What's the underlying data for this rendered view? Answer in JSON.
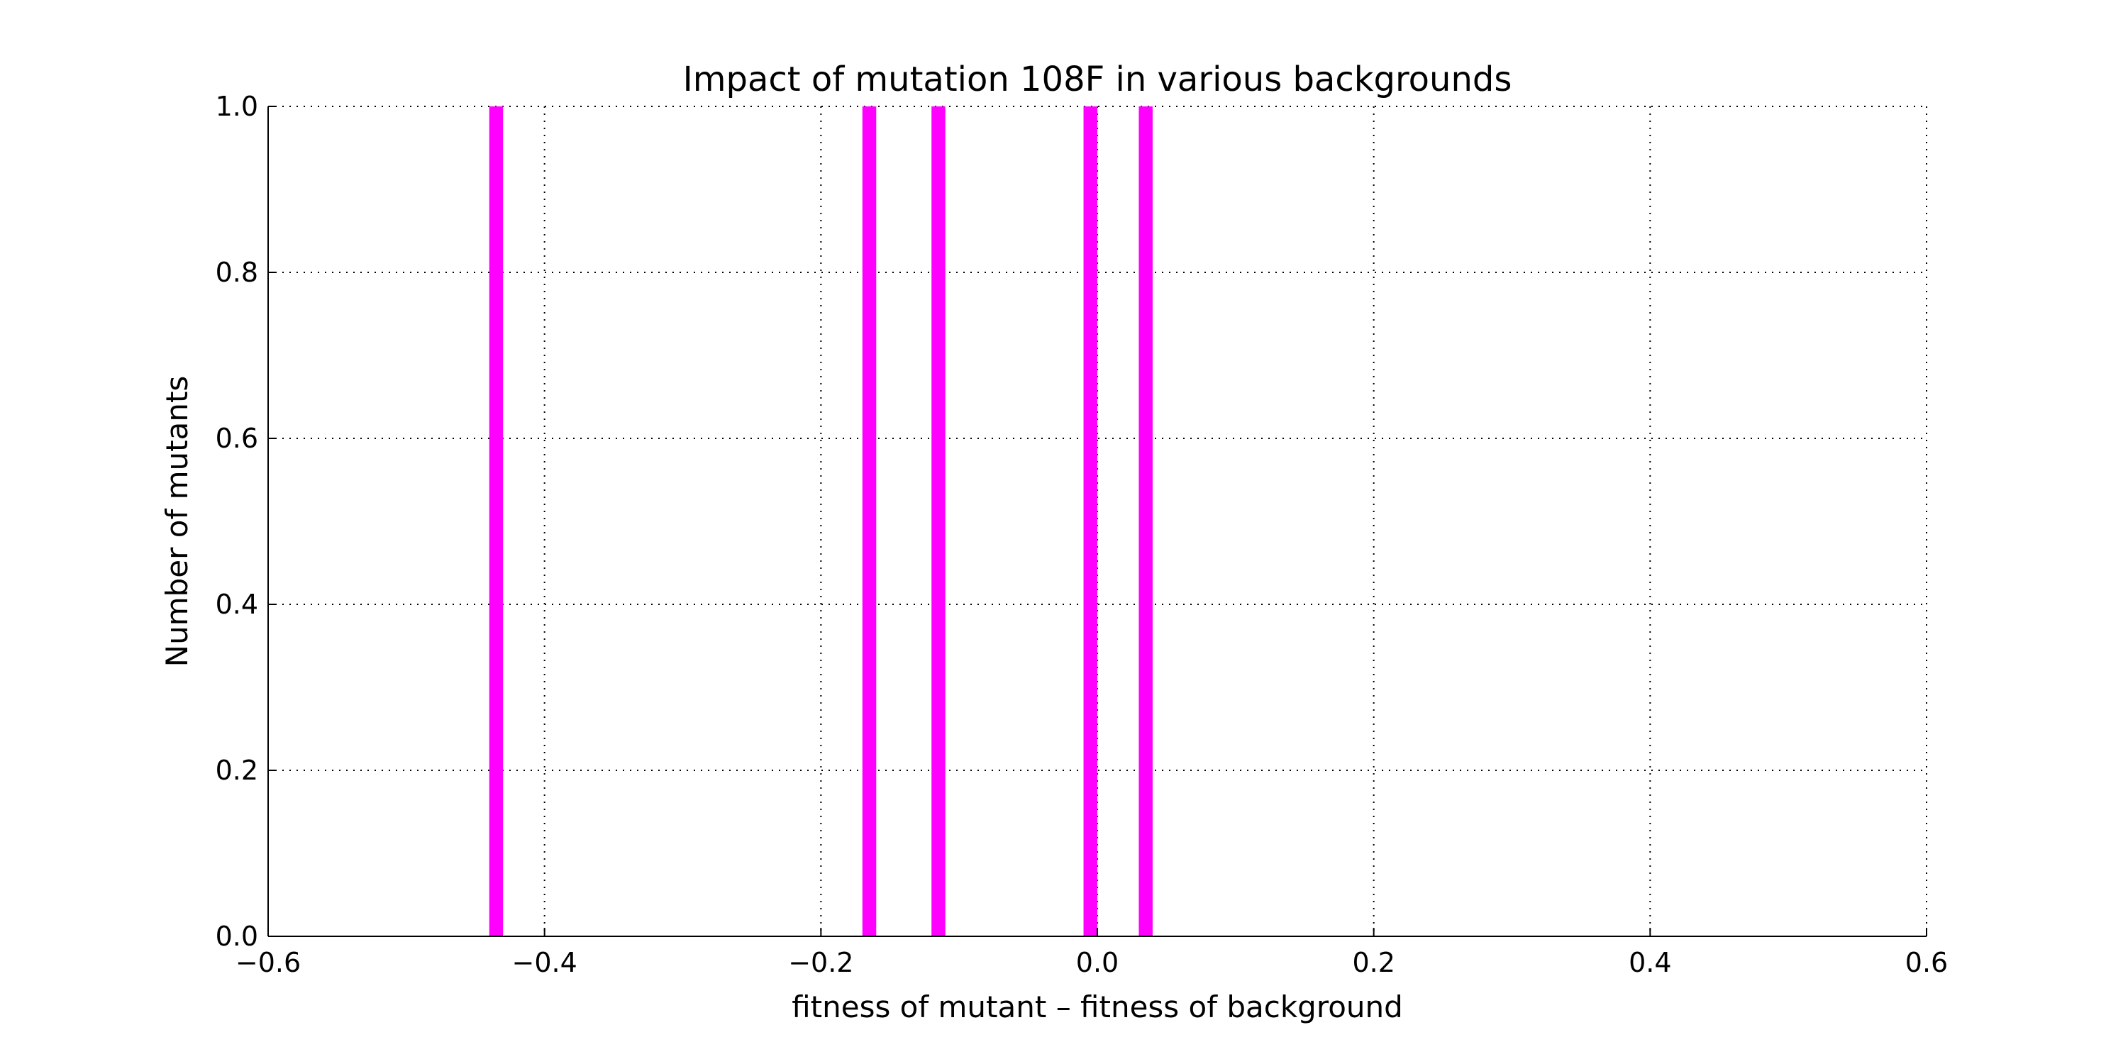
{
  "chart_data": {
    "type": "bar",
    "title": "Impact of mutation 108F in various backgrounds",
    "xlabel": "fitness of mutant  –  fitness of background",
    "ylabel": "Number of mutants",
    "xlim": [
      -0.6,
      0.6
    ],
    "ylim": [
      0.0,
      1.0
    ],
    "xticks": [
      -0.6,
      -0.4,
      -0.2,
      0.0,
      0.2,
      0.4,
      0.6
    ],
    "xtick_labels": [
      "−0.6",
      "−0.4",
      "−0.2",
      "0.0",
      "0.2",
      "0.4",
      "0.6"
    ],
    "yticks": [
      0.0,
      0.2,
      0.4,
      0.6,
      0.8,
      1.0
    ],
    "ytick_labels": [
      "0.0",
      "0.2",
      "0.4",
      "0.6",
      "0.8",
      "1.0"
    ],
    "grid": true,
    "bar_color": "#ff00ff",
    "bin_width": 0.01,
    "bars": [
      {
        "x": -0.435,
        "value": 1
      },
      {
        "x": -0.165,
        "value": 1
      },
      {
        "x": -0.115,
        "value": 1
      },
      {
        "x": -0.005,
        "value": 1
      },
      {
        "x": 0.035,
        "value": 1
      }
    ]
  }
}
